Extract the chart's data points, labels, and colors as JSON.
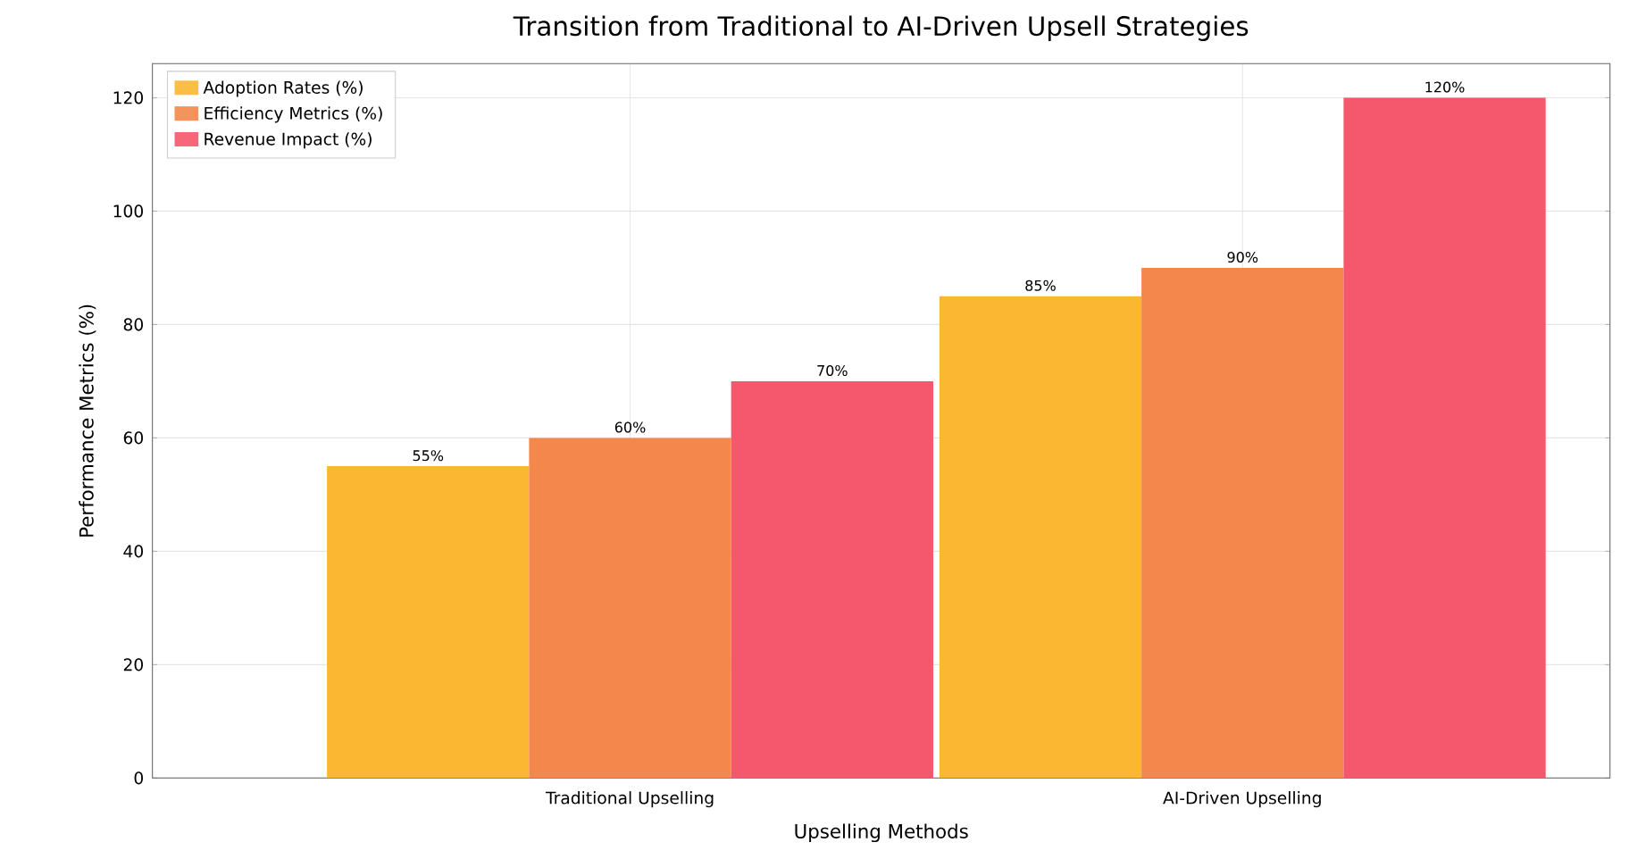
{
  "chart_data": {
    "type": "bar",
    "title": "Transition from Traditional to AI-Driven Upsell Strategies",
    "xlabel": "Upselling Methods",
    "ylabel": "Performance Metrics (%)",
    "categories": [
      "Traditional Upselling",
      "AI-Driven Upselling"
    ],
    "series": [
      {
        "name": "Adoption Rates (%)",
        "color": "#fbb731",
        "values": [
          55,
          85
        ],
        "value_labels": [
          "55%",
          "85%"
        ]
      },
      {
        "name": "Efficiency Metrics (%)",
        "color": "#f4874b",
        "values": [
          60,
          90
        ],
        "value_labels": [
          "60%",
          "90%"
        ]
      },
      {
        "name": "Revenue Impact (%)",
        "color": "#f5576c",
        "values": [
          70,
          120
        ],
        "value_labels": [
          "70%",
          "120%"
        ]
      }
    ],
    "ylim": [
      0,
      126
    ],
    "yticks": [
      0,
      20,
      40,
      60,
      80,
      100,
      120
    ],
    "grid": true,
    "legend": "top left"
  }
}
